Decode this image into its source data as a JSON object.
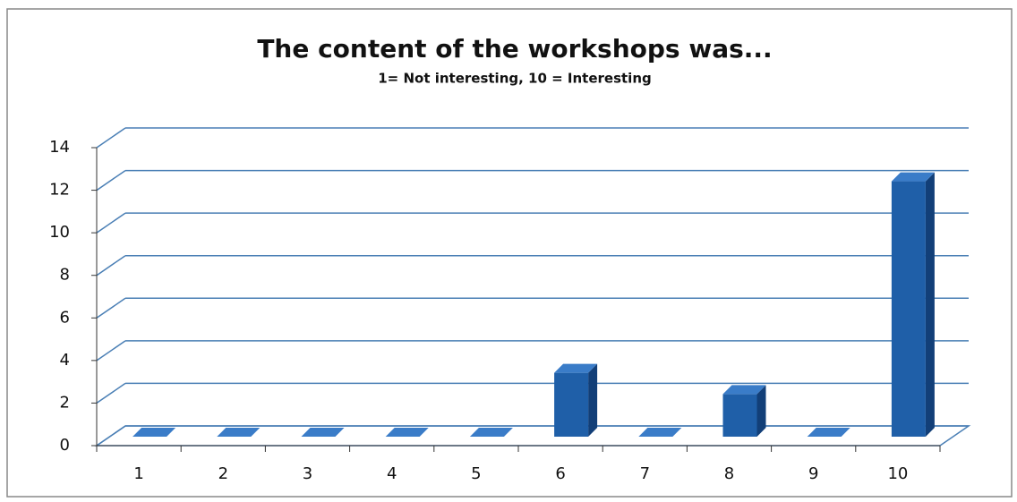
{
  "chart_data": {
    "type": "bar3d",
    "title": "The content of the workshops was...",
    "subtitle": "1= Not interesting, 10 = Interesting",
    "categories": [
      "1",
      "2",
      "3",
      "4",
      "5",
      "6",
      "7",
      "8",
      "9",
      "10"
    ],
    "values": [
      0,
      0,
      0,
      0,
      0,
      3,
      0,
      2,
      0,
      12
    ],
    "color": "#1f5fa8",
    "ylim": [
      0,
      14
    ],
    "yticks": [
      0,
      2,
      4,
      6,
      8,
      10,
      12,
      14
    ],
    "grid": true
  }
}
